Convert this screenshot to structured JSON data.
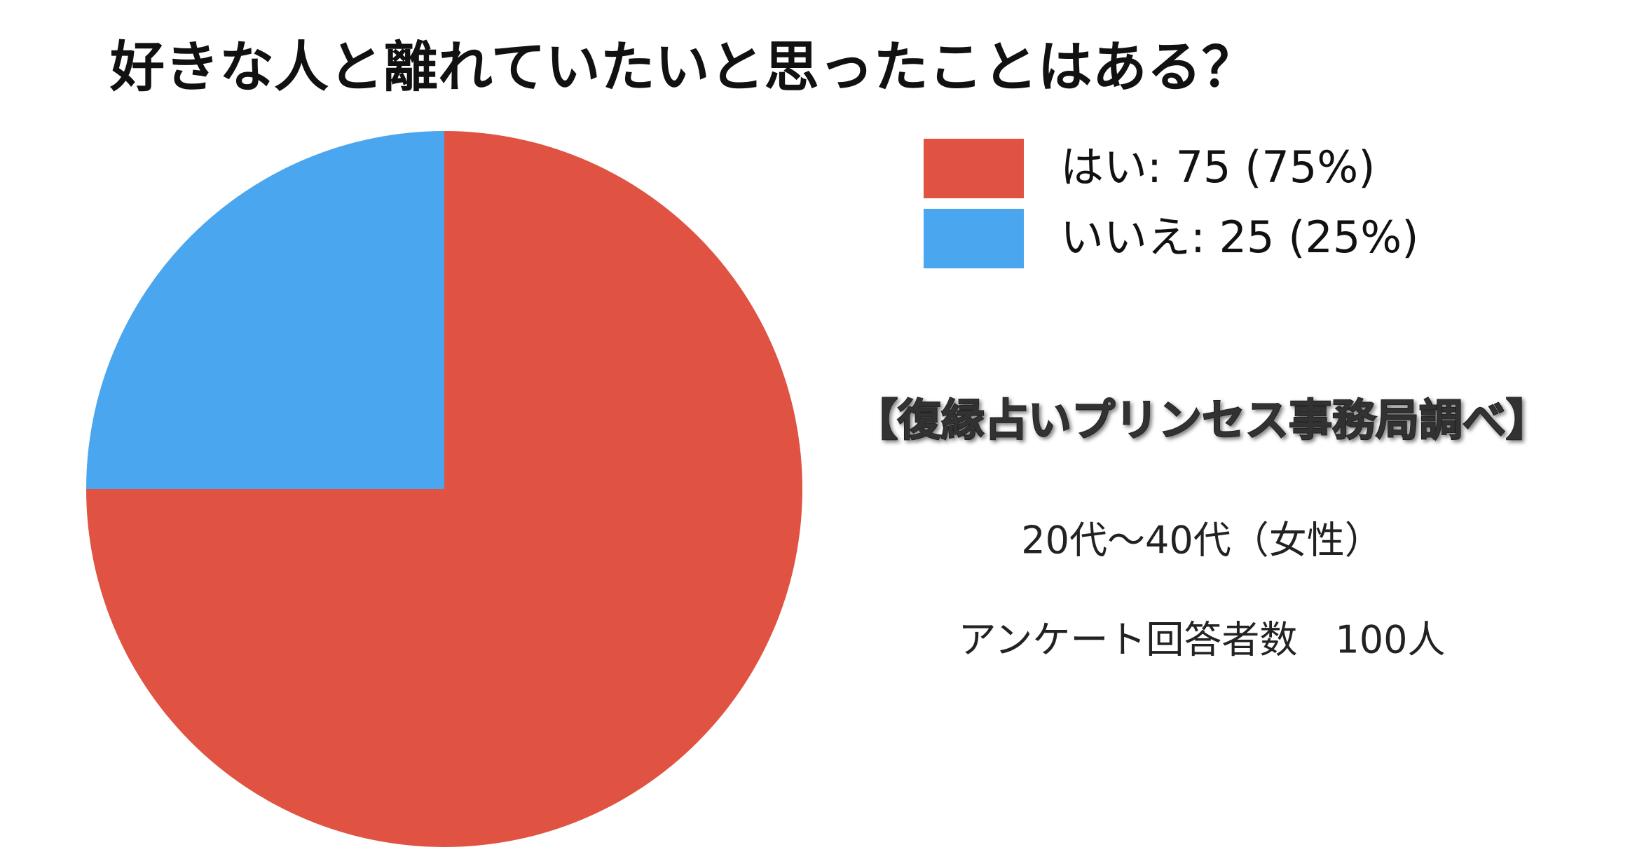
{
  "chart_data": {
    "type": "pie",
    "title": "好きな人と離れていたいと思ったことはある？",
    "values": [
      75,
      25
    ],
    "value_labels": [
      "はい: 75 (75%)",
      "いいえ: 25 (25%)"
    ],
    "colors": [
      "#e05242",
      "#4aa6ee"
    ],
    "start_angle": 0,
    "direction": "clockwise",
    "legend": "top-right",
    "annotations": [
      "【復縁占いプリンセス事務局調べ】",
      "20代〜40代（女性）",
      "アンケート回答者数　100人"
    ]
  }
}
